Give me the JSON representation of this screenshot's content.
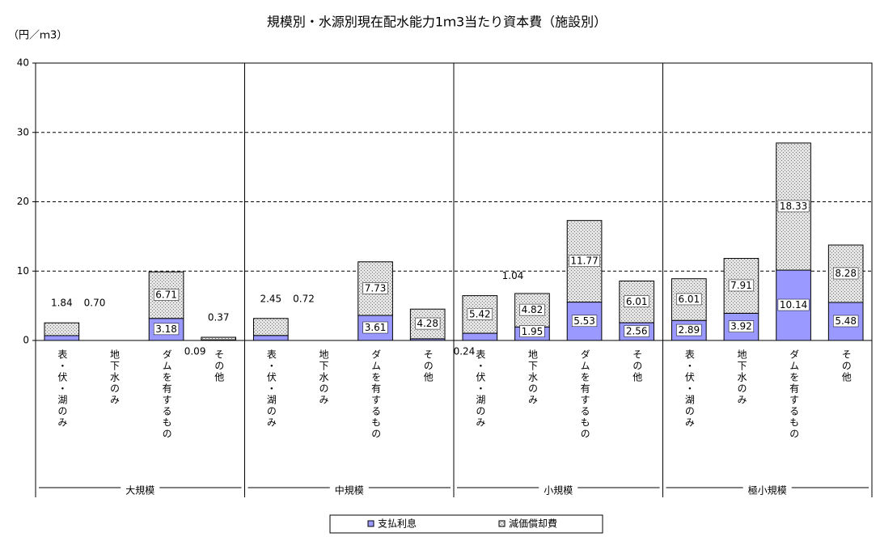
{
  "chart_data": {
    "type": "stacked_bar",
    "title": "規模別・水源別現在配水能力1ｍ3当たり資本費（施設別）",
    "y_label": "（円／ｍ3）",
    "groups": [
      "大規模",
      "中規模",
      "小規模",
      "極小規模"
    ],
    "categories": [
      "表・伏・湖のみ",
      "地下水のみ",
      "ダムを有するもの",
      "その他",
      "表・伏・湖のみ",
      "地下水のみ",
      "ダムを有するもの",
      "その他",
      "表・伏・湖のみ",
      "地下水のみ",
      "ダムを有するもの",
      "その他",
      "表・伏・湖のみ",
      "地下水のみ",
      "ダムを有するもの",
      "その他"
    ],
    "series": [
      {
        "name": "支払利息",
        "color": "#9999ff",
        "values": [
          0.7,
          null,
          3.18,
          0.09,
          0.72,
          null,
          3.61,
          0.24,
          1.04,
          1.95,
          5.53,
          2.56,
          2.89,
          3.92,
          10.14,
          5.48
        ],
        "value_labels": [
          "0.70",
          null,
          "3.18",
          "0.09",
          "0.72",
          null,
          "3.61",
          "0.24",
          "1.04",
          "1.95",
          "5.53",
          "2.56",
          "2.89",
          "3.92",
          "10.14",
          "5.48"
        ]
      },
      {
        "name": "減価償却費",
        "color": "#d8d8d8",
        "values": [
          1.84,
          null,
          6.71,
          0.37,
          2.45,
          null,
          7.73,
          4.28,
          5.42,
          4.82,
          11.77,
          6.01,
          6.01,
          7.91,
          18.33,
          8.28
        ],
        "value_labels": [
          "1.84",
          null,
          "6.71",
          "0.37",
          "2.45",
          null,
          "7.73",
          "4.28",
          "5.42",
          "4.82",
          "11.77",
          "6.01",
          "6.01",
          "7.91",
          "18.33",
          "8.28"
        ]
      }
    ],
    "ylim": [
      0,
      40
    ],
    "yticks": [
      0,
      10,
      20,
      30,
      40
    ],
    "grid": true
  }
}
